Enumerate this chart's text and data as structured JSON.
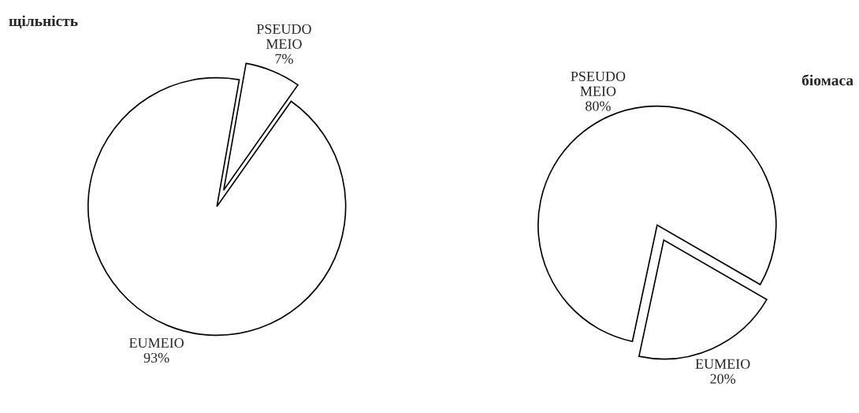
{
  "chart_data": [
    {
      "type": "pie",
      "title": "щільність",
      "categories": [
        "PSEUDO\nMEIO",
        "EUMEIO"
      ],
      "values": [
        7,
        93
      ],
      "value_labels": [
        "7%",
        "93%"
      ],
      "colors": [
        "#ffffff",
        "#ffffff"
      ]
    },
    {
      "type": "pie",
      "title": "біомаса",
      "categories": [
        "PSEUDO\nMEIO",
        "EUMEIO"
      ],
      "values": [
        80,
        20
      ],
      "value_labels": [
        "80%",
        "20%"
      ],
      "colors": [
        "#ffffff",
        "#ffffff"
      ]
    }
  ]
}
